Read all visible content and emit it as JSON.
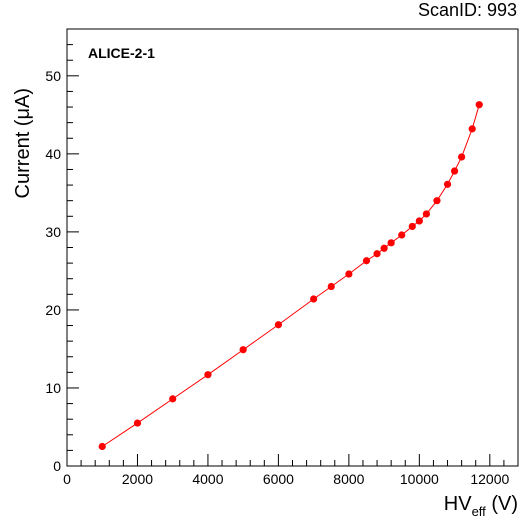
{
  "scan_label": "ScanID: 993",
  "chart_data": {
    "type": "scatter",
    "title": "",
    "annotation": "ALICE-2-1",
    "xlabel_main": "HV",
    "xlabel_sub": "eff",
    "xlabel_unit": " (V)",
    "ylabel": "Current (μA)",
    "xlim": [
      0,
      12800
    ],
    "ylim": [
      0,
      56
    ],
    "xticks": [
      0,
      2000,
      4000,
      6000,
      8000,
      10000,
      12000
    ],
    "yticks": [
      0,
      10,
      20,
      30,
      40,
      50
    ],
    "marker_color": "#ff0000",
    "line_color": "#ff0000",
    "series": [
      {
        "x": [
          1000,
          2000,
          3000,
          4000,
          5000,
          6000,
          7000,
          7500,
          8000,
          8500,
          8800,
          9000,
          9200,
          9500,
          9800,
          10000,
          10200,
          10500,
          10800,
          11000,
          11200,
          11500,
          11700
        ],
        "y": [
          2.5,
          5.5,
          8.6,
          11.7,
          14.9,
          18.1,
          21.4,
          23.0,
          24.6,
          26.3,
          27.2,
          27.9,
          28.6,
          29.6,
          30.7,
          31.4,
          32.3,
          34.0,
          36.1,
          37.8,
          39.6,
          43.2,
          46.3
        ]
      }
    ]
  }
}
